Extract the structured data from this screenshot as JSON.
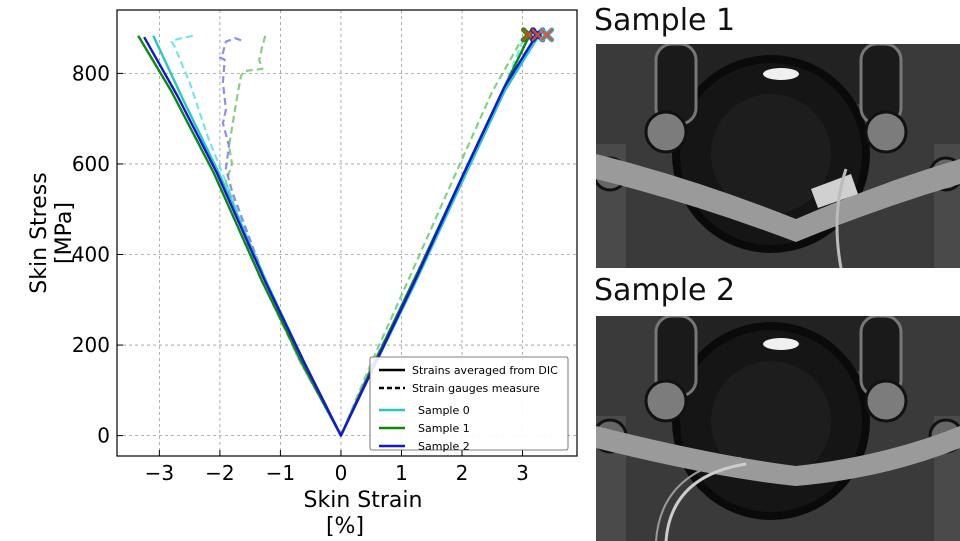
{
  "chart_data": {
    "type": "line",
    "xlabel": "Skin Strain",
    "xlabel_unit": "[%]",
    "ylabel": "Skin Stress",
    "ylabel_unit": "[MPa]",
    "xlim": [
      -3.7,
      3.9
    ],
    "ylim": [
      -45,
      940
    ],
    "xticks": [
      -3,
      -2,
      -1,
      0,
      1,
      2,
      3
    ],
    "xtick_labels": [
      "−3",
      "−2",
      "−1",
      "0",
      "1",
      "2",
      "3"
    ],
    "yticks": [
      0,
      200,
      400,
      600,
      800
    ],
    "ytick_labels": [
      "0",
      "200",
      "400",
      "600",
      "800"
    ],
    "grid": true,
    "legend_position": "bottom-right",
    "legend": [
      {
        "label": "Strains averaged from DIC",
        "color": "#000000",
        "style": "solid"
      },
      {
        "label": "Strain gauges measure",
        "color": "#000000",
        "style": "dashed"
      },
      {
        "label": "Sample 0",
        "color": "#27c7c7",
        "style": "solid"
      },
      {
        "label": "Sample 1",
        "color": "#0a8a0a",
        "style": "solid"
      },
      {
        "label": "Sample 2",
        "color": "#1515d6",
        "style": "solid"
      }
    ],
    "series": [
      {
        "name": "Sample 0",
        "kind": "DIC",
        "color": "#27c7c7",
        "style": "solid",
        "points": [
          [
            -3.1,
            883
          ],
          [
            -2.6,
            740
          ],
          [
            -2.0,
            575
          ],
          [
            -1.2,
            330
          ],
          [
            -0.6,
            160
          ],
          [
            0,
            0
          ],
          [
            0.5,
            140
          ],
          [
            1.2,
            330
          ],
          [
            2.0,
            560
          ],
          [
            2.7,
            760
          ],
          [
            3.25,
            880
          ]
        ]
      },
      {
        "name": "Sample 1",
        "kind": "DIC",
        "color": "#0a8a0a",
        "style": "solid",
        "points": [
          [
            -3.35,
            883
          ],
          [
            -2.8,
            760
          ],
          [
            -2.1,
            580
          ],
          [
            -1.3,
            340
          ],
          [
            -0.6,
            150
          ],
          [
            0,
            0
          ],
          [
            0.55,
            160
          ],
          [
            1.3,
            370
          ],
          [
            2.1,
            600
          ],
          [
            2.7,
            770
          ],
          [
            3.1,
            880
          ]
        ]
      },
      {
        "name": "Sample 2",
        "kind": "DIC",
        "color": "#1515d6",
        "style": "solid",
        "points": [
          [
            -3.25,
            880
          ],
          [
            -2.7,
            750
          ],
          [
            -2.05,
            580
          ],
          [
            -1.25,
            340
          ],
          [
            -0.6,
            160
          ],
          [
            0,
            0
          ],
          [
            0.5,
            140
          ],
          [
            1.25,
            350
          ],
          [
            2.0,
            570
          ],
          [
            2.7,
            770
          ],
          [
            3.2,
            878
          ]
        ]
      },
      {
        "name": "Sample 0",
        "kind": "gauge",
        "color": "#5fe0e0",
        "style": "dashed",
        "points": [
          [
            -2.45,
            883
          ],
          [
            -2.7,
            876
          ],
          [
            -2.8,
            870
          ],
          [
            -2.75,
            860
          ],
          [
            -2.5,
            780
          ],
          [
            -2.2,
            660
          ],
          [
            -1.9,
            560
          ],
          [
            -1.3,
            360
          ],
          [
            -0.6,
            160
          ],
          [
            0,
            0
          ],
          [
            0.5,
            150
          ],
          [
            1.2,
            340
          ],
          [
            2.0,
            570
          ],
          [
            2.7,
            770
          ],
          [
            3.0,
            870
          ],
          [
            3.2,
            880
          ]
        ]
      },
      {
        "name": "Sample 1",
        "kind": "gauge",
        "color": "#6ec96e",
        "style": "dashed",
        "points": [
          [
            -1.25,
            883
          ],
          [
            -1.3,
            860
          ],
          [
            -1.35,
            830
          ],
          [
            -1.3,
            810
          ],
          [
            -1.6,
            805
          ],
          [
            -1.65,
            795
          ],
          [
            -1.7,
            760
          ],
          [
            -1.75,
            720
          ],
          [
            -1.8,
            680
          ],
          [
            -1.85,
            640
          ],
          [
            -1.8,
            600
          ],
          [
            -1.9,
            560
          ],
          [
            -1.4,
            370
          ],
          [
            -0.7,
            170
          ],
          [
            0,
            0
          ],
          [
            0.5,
            160
          ],
          [
            1.2,
            370
          ],
          [
            1.9,
            580
          ],
          [
            2.5,
            760
          ],
          [
            3.0,
            878
          ]
        ]
      },
      {
        "name": "Sample 2",
        "kind": "gauge",
        "color": "#7a7ae8",
        "style": "dashed",
        "points": [
          [
            -1.65,
            873
          ],
          [
            -1.75,
            878
          ],
          [
            -1.9,
            870
          ],
          [
            -1.95,
            845
          ],
          [
            -2.0,
            835
          ],
          [
            -1.92,
            830
          ],
          [
            -1.95,
            780
          ],
          [
            -1.9,
            720
          ],
          [
            -1.95,
            690
          ],
          [
            -1.85,
            640
          ],
          [
            -1.9,
            590
          ],
          [
            -1.8,
            540
          ],
          [
            -1.3,
            360
          ],
          [
            -0.7,
            170
          ],
          [
            0,
            0
          ],
          [
            0.5,
            150
          ],
          [
            1.25,
            350
          ],
          [
            2.0,
            570
          ],
          [
            2.7,
            770
          ],
          [
            3.25,
            878
          ]
        ]
      }
    ],
    "failure_markers": [
      {
        "name": "Sample 1",
        "x": 3.1,
        "y": 885,
        "fill": "#c84b2a",
        "edge": "#0a8a0a"
      },
      {
        "name": "Sample 2",
        "x": 3.25,
        "y": 885,
        "fill": "#c84b2a",
        "edge": "#1515d6"
      },
      {
        "name": "Sample 0",
        "x": 3.4,
        "y": 885,
        "fill": "#e0504a",
        "edge": "#27c7c7"
      }
    ]
  },
  "photos": [
    {
      "title": "Sample 1"
    },
    {
      "title": "Sample 2"
    }
  ]
}
